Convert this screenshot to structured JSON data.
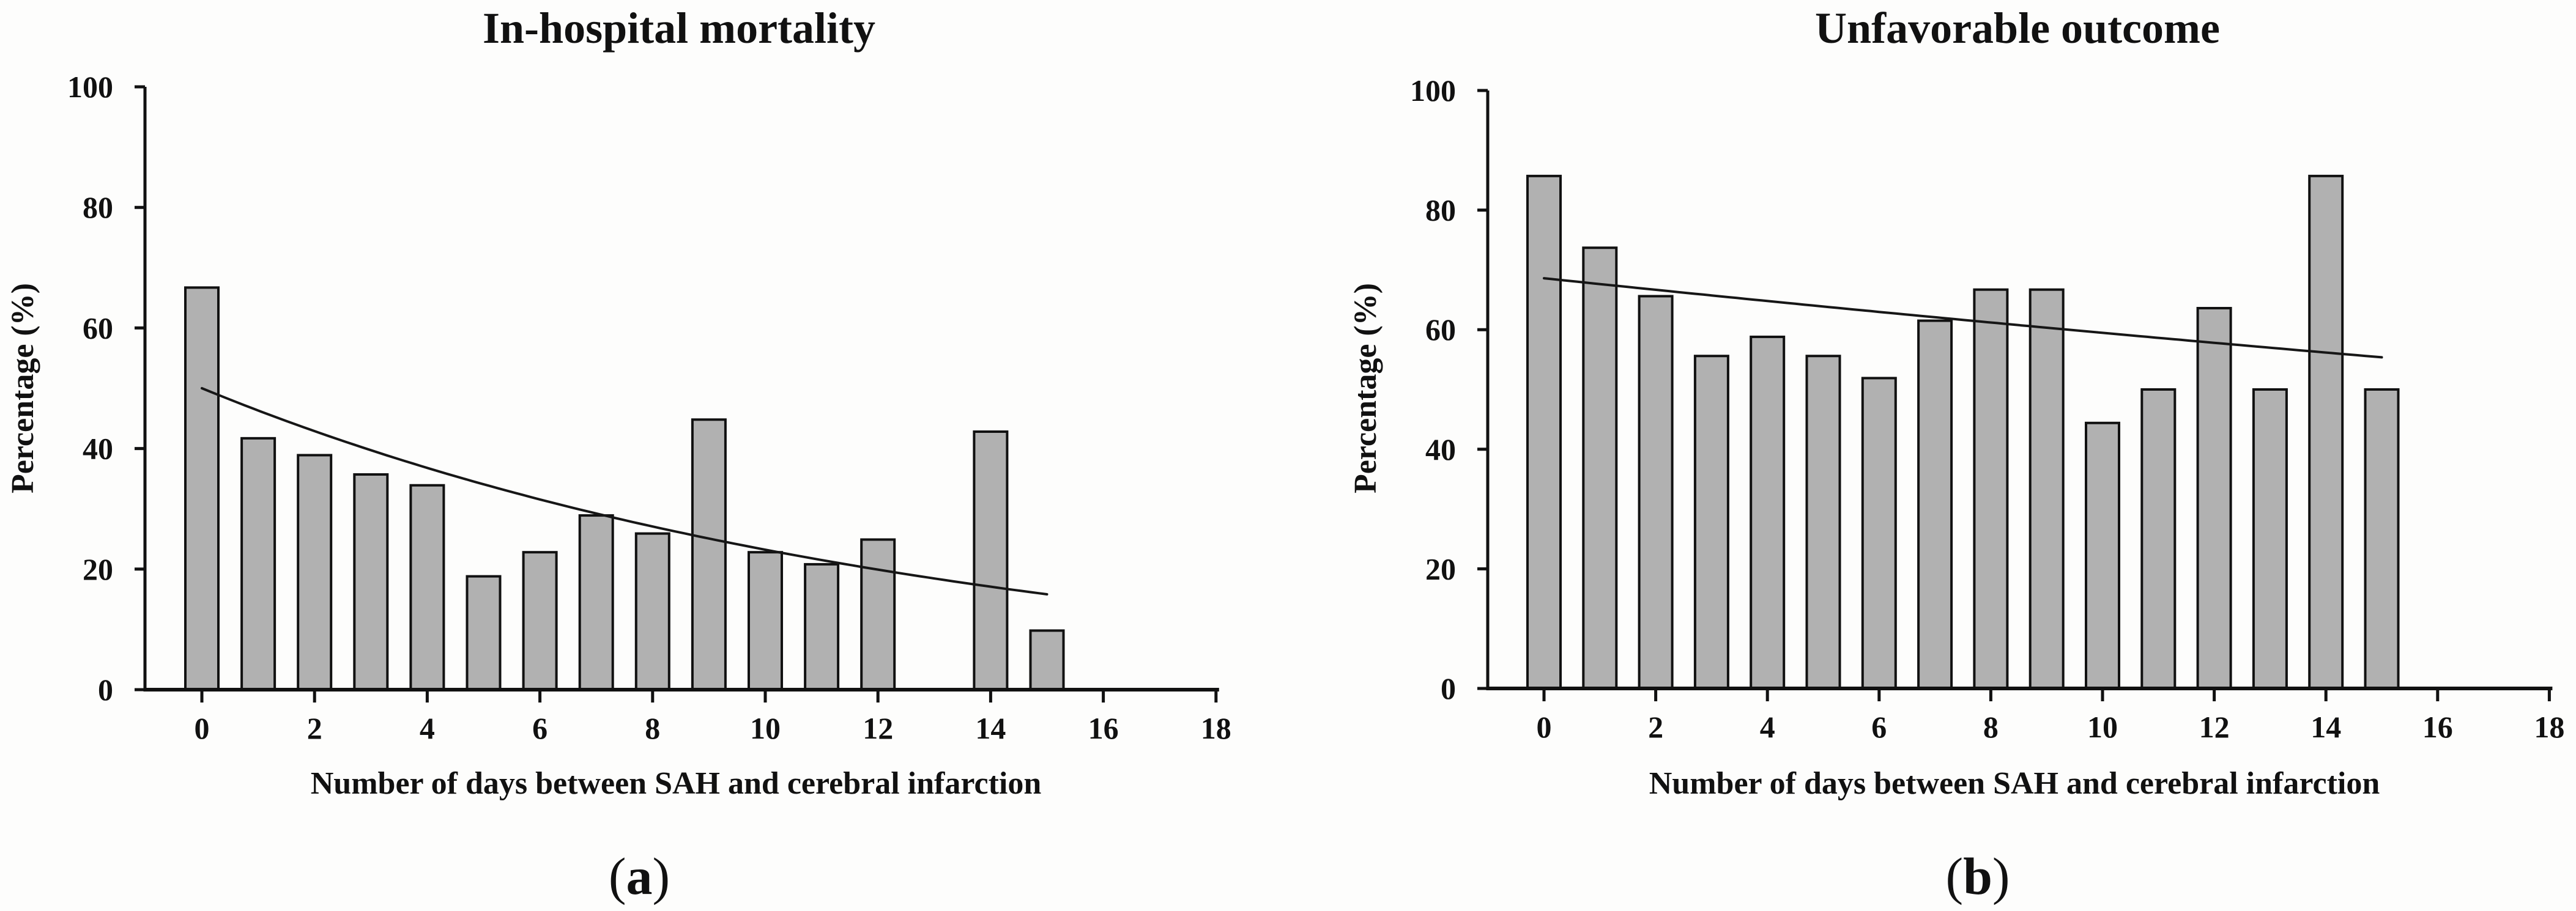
{
  "chart_data": [
    {
      "type": "bar",
      "panel": "a",
      "title": "In-hospital mortality",
      "xlabel": "Number of days between SAH and cerebral infarction",
      "ylabel": "Percentage (%)",
      "caption_open": "(",
      "caption_letter": "a",
      "caption_close": ")",
      "x": [
        0,
        1,
        2,
        3,
        4,
        5,
        6,
        7,
        8,
        9,
        10,
        11,
        12,
        14,
        15
      ],
      "values": [
        66.7,
        41.7,
        38.9,
        35.7,
        33.9,
        18.8,
        22.8,
        28.9,
        25.9,
        44.8,
        22.8,
        20.8,
        24.9,
        42.8,
        9.8
      ],
      "x_ticks": [
        0,
        2,
        4,
        6,
        8,
        10,
        12,
        14,
        16,
        18
      ],
      "y_ticks": [
        0,
        20,
        40,
        60,
        80,
        100
      ],
      "xlim": [
        0,
        18
      ],
      "ylim": [
        0,
        100
      ],
      "grid": false,
      "trend": {
        "shape": "exponential",
        "x_start": 0,
        "y_start": 50.0,
        "x_end": 15.1,
        "y_end": 15.7
      },
      "bar_fill": "#b1b1b1",
      "bar_stroke": "#111111",
      "axis_color": "#111111",
      "trend_color": "#161616"
    },
    {
      "type": "bar",
      "panel": "b",
      "title": "Unfavorable outcome",
      "xlabel": "Number of days between SAH and cerebral infarction",
      "ylabel": "Percentage (%)",
      "caption_open": "(",
      "caption_letter": "b",
      "caption_close": ")",
      "x": [
        0,
        1,
        2,
        3,
        4,
        5,
        6,
        7,
        8,
        9,
        10,
        11,
        12,
        13,
        14,
        15
      ],
      "values": [
        85.7,
        73.7,
        65.6,
        55.6,
        58.8,
        55.6,
        51.9,
        61.5,
        66.7,
        66.7,
        44.4,
        50.0,
        63.6,
        50.0,
        85.7,
        50.0
      ],
      "x_ticks": [
        0,
        2,
        4,
        6,
        8,
        10,
        12,
        14,
        16,
        18
      ],
      "y_ticks": [
        0,
        20,
        40,
        60,
        80,
        100
      ],
      "xlim": [
        0,
        18
      ],
      "ylim": [
        0,
        100
      ],
      "grid": false,
      "trend": {
        "shape": "exponential",
        "x_start": 0,
        "y_start": 68.6,
        "x_end": 15.1,
        "y_end": 55.3
      },
      "bar_fill": "#b1b1b1",
      "bar_stroke": "#111111",
      "axis_color": "#111111",
      "trend_color": "#161616"
    }
  ]
}
